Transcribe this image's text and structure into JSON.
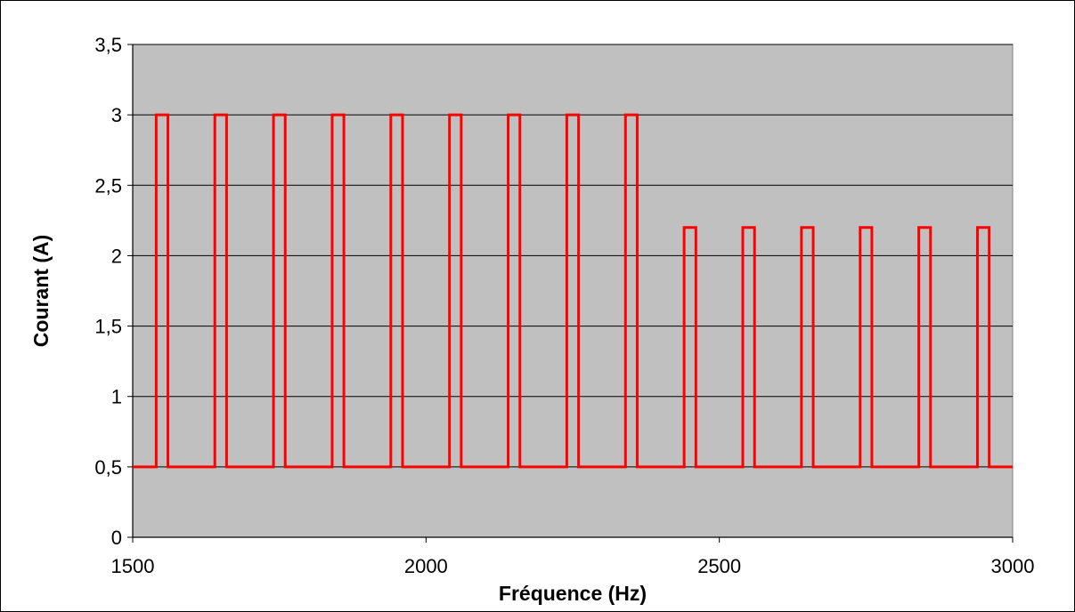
{
  "chart_data": {
    "type": "line",
    "title": "",
    "xlabel": "Fréquence (Hz)",
    "ylabel": "Courant (A)",
    "xlim": [
      1500,
      3000
    ],
    "ylim": [
      0,
      3.5
    ],
    "x_ticks": [
      1500,
      2000,
      2500,
      3000
    ],
    "x_tick_labels": [
      "1500",
      "2000",
      "2500",
      "3000"
    ],
    "y_ticks": [
      0,
      0.5,
      1,
      1.5,
      2,
      2.5,
      3,
      3.5
    ],
    "y_tick_labels": [
      "0",
      "0,5",
      "1",
      "1,5",
      "2",
      "2,5",
      "3",
      "3,5"
    ],
    "grid": "horizontal",
    "legend": "none",
    "colors": {
      "plot_background": "#c0c0c0",
      "line": "#ff0000",
      "grid": "#000000"
    },
    "series": [
      {
        "x": [
          1500,
          1540,
          1540,
          1560,
          1560,
          1640,
          1640,
          1660,
          1660,
          1740,
          1740,
          1760,
          1760,
          1840,
          1840,
          1860,
          1860,
          1940,
          1940,
          1960,
          1960,
          2040,
          2040,
          2060,
          2060,
          2140,
          2140,
          2160,
          2160,
          2240,
          2240,
          2260,
          2260,
          2340,
          2340,
          2360,
          2360,
          2440,
          2440,
          2460,
          2460,
          2540,
          2540,
          2560,
          2560,
          2640,
          2640,
          2660,
          2660,
          2740,
          2740,
          2760,
          2760,
          2840,
          2840,
          2860,
          2860,
          2940,
          2940,
          2960,
          2960,
          3000
        ],
        "y": [
          0.5,
          0.5,
          3,
          3,
          0.5,
          0.5,
          3,
          3,
          0.5,
          0.5,
          3,
          3,
          0.5,
          0.5,
          3,
          3,
          0.5,
          0.5,
          3,
          3,
          0.5,
          0.5,
          3,
          3,
          0.5,
          0.5,
          3,
          3,
          0.5,
          0.5,
          3,
          3,
          0.5,
          0.5,
          3,
          3,
          0.5,
          0.5,
          2.2,
          2.2,
          0.5,
          0.5,
          2.2,
          2.2,
          0.5,
          0.5,
          2.2,
          2.2,
          0.5,
          0.5,
          2.2,
          2.2,
          0.5,
          0.5,
          2.2,
          2.2,
          0.5,
          0.5,
          2.2,
          2.2,
          0.5,
          0.5
        ]
      }
    ]
  }
}
